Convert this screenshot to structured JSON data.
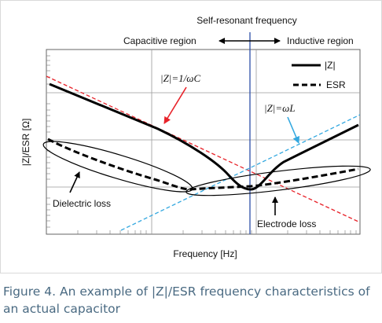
{
  "diagram": {
    "top_label": "Self-resonant frequency",
    "capacitive_label": "Capacitive region",
    "inductive_label": "Inductive region",
    "y_axis_label": "|Z|/ESR [Ω]",
    "x_axis_label": "Frequency [Hz]",
    "legend": {
      "z_label": "|Z|",
      "esr_label": "ESR"
    },
    "annotations": {
      "capacitive_formula": "|Z|=1/ωC",
      "inductive_formula": "|Z|=ωL",
      "dielectric_loss": "Dielectric loss",
      "electrode_loss": "Electrode loss"
    },
    "colors": {
      "capacitive_asymptote": "#e8232a",
      "inductive_asymptote": "#33a8e0",
      "resonance_line": "#2c4fa8",
      "curve": "#000000"
    }
  },
  "caption": "Figure 4. An example of |Z|/ESR frequency characteristics of an actual capacitor"
}
